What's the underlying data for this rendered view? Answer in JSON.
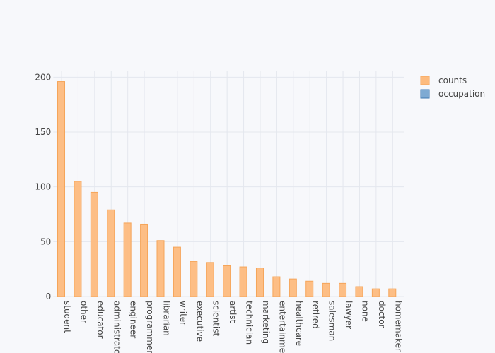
{
  "chart_data": {
    "type": "bar",
    "categories": [
      "student",
      "other",
      "educator",
      "administrator",
      "engineer",
      "programmer",
      "librarian",
      "writer",
      "executive",
      "scientist",
      "artist",
      "technician",
      "marketing",
      "entertainment",
      "healthcare",
      "retired",
      "salesman",
      "lawyer",
      "none",
      "doctor",
      "homemaker"
    ],
    "series": [
      {
        "name": "counts",
        "color": "#fdbb7e",
        "values": [
          196,
          105,
          95,
          79,
          67,
          66,
          51,
          45,
          32,
          31,
          28,
          27,
          26,
          18,
          16,
          14,
          12,
          12,
          9,
          7,
          7
        ]
      },
      {
        "name": "occupation",
        "color": "#7eaad3",
        "values": [
          null,
          null,
          null,
          null,
          null,
          null,
          null,
          null,
          null,
          null,
          null,
          null,
          null,
          null,
          null,
          null,
          null,
          null,
          null,
          null,
          null
        ]
      }
    ],
    "ylim": [
      0,
      206
    ],
    "yticks": [
      0,
      50,
      100,
      150,
      200
    ],
    "grid": true
  }
}
